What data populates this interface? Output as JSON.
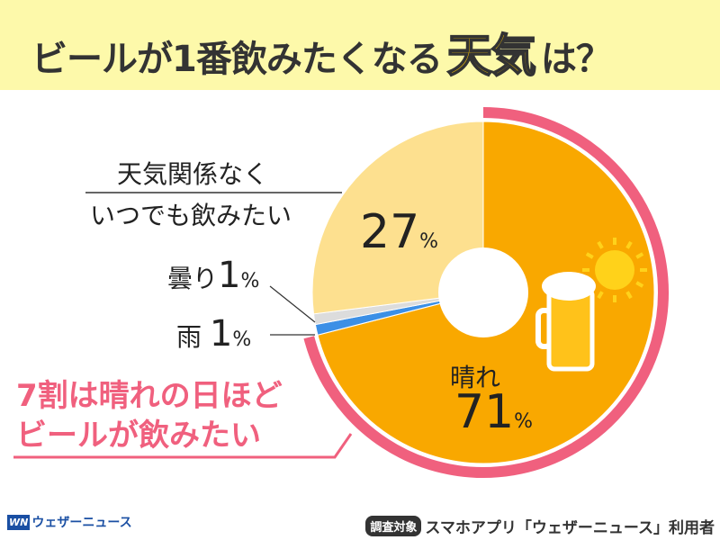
{
  "title": {
    "pre": "ビールが1番飲みたくなる",
    "highlight": "天気",
    "post": "は？"
  },
  "chart_data": {
    "type": "pie",
    "style": "donut",
    "title": "ビールが1番飲みたくなる天気は？",
    "slices": [
      {
        "label": "晴れ",
        "value": 71,
        "color": "#f9a800"
      },
      {
        "label": "雨",
        "value": 1,
        "color": "#3b8fe6"
      },
      {
        "label": "曇り",
        "value": 1,
        "color": "#dcdcdc"
      },
      {
        "label": "天気関係なくいつでも飲みたい",
        "value": 27,
        "color": "#fde08f"
      }
    ],
    "unit": "%",
    "highlight_color": "#f0607e"
  },
  "labels": {
    "sunny": {
      "name": "晴れ",
      "value": "71",
      "unit": "%"
    },
    "rain": {
      "name": "雨",
      "value": "1",
      "unit": "%"
    },
    "cloudy": {
      "name": "曇り",
      "value": "1",
      "unit": "%"
    },
    "anytime": {
      "line1": "天気関係なく",
      "line2": "いつでも飲みたい",
      "value": "27",
      "unit": "%"
    }
  },
  "callout": {
    "line1": "7割は晴れの日ほど",
    "line2": "ビールが飲みたい"
  },
  "footer": {
    "logo_mark": "WN",
    "logo_text": "ウェザーニュース",
    "survey_tag": "調査対象",
    "survey_text": "スマホアプリ「ウェザーニュース」利用者"
  }
}
